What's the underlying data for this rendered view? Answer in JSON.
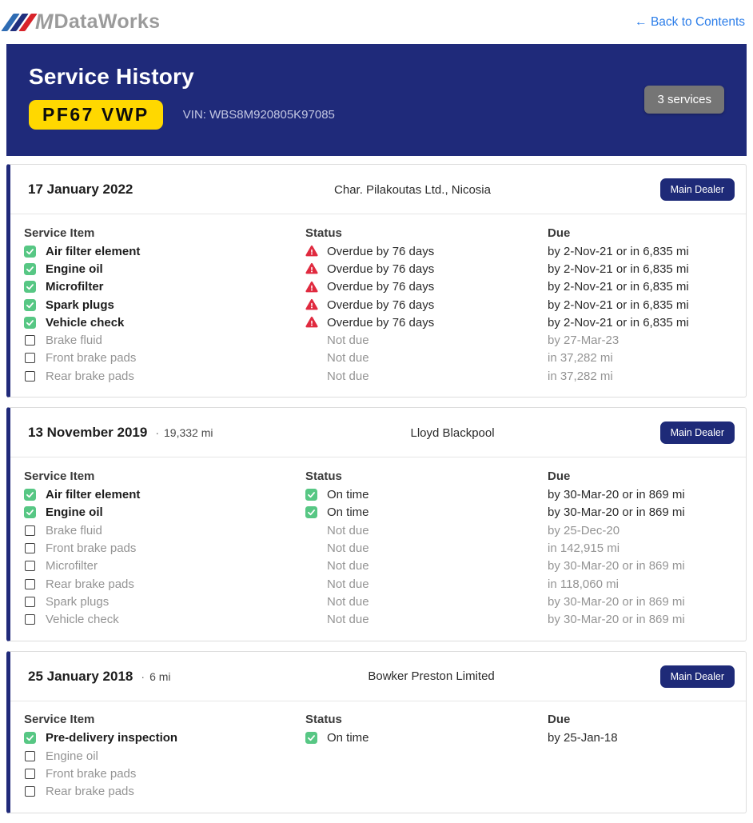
{
  "header": {
    "logo_m": "M",
    "logo_text": "DataWorks",
    "back_link": "← Back to Contents"
  },
  "banner": {
    "title": "Service History",
    "plate": "PF67 VWP",
    "vin": "VIN: WBS8M920805K97085",
    "services_badge": "3 services"
  },
  "table_headers": {
    "item": "Service Item",
    "status": "Status",
    "due": "Due"
  },
  "icons": {
    "checked": "check-icon",
    "overdue": "warning-triangle-icon",
    "ontime": "check-icon",
    "unchecked": "empty-checkbox-icon"
  },
  "colors": {
    "navy": "#1f2a7a",
    "plate_yellow": "#ffd800",
    "green": "#57c784",
    "red": "#e02a3f",
    "link_blue": "#2b7de9",
    "badge_gray": "#757575"
  },
  "services": [
    {
      "date": "17 January 2022",
      "mileage": "",
      "dealer": "Char. Pilakoutas Ltd., Nicosia",
      "badge": "Main Dealer",
      "items": [
        {
          "name": "Air filter element",
          "checked": true,
          "status_type": "overdue",
          "status": "Overdue by 76 days",
          "due": "by 2-Nov-21 or in 6,835 mi"
        },
        {
          "name": "Engine oil",
          "checked": true,
          "status_type": "overdue",
          "status": "Overdue by 76 days",
          "due": "by 2-Nov-21 or in 6,835 mi"
        },
        {
          "name": "Microfilter",
          "checked": true,
          "status_type": "overdue",
          "status": "Overdue by 76 days",
          "due": "by 2-Nov-21 or in 6,835 mi"
        },
        {
          "name": "Spark plugs",
          "checked": true,
          "status_type": "overdue",
          "status": "Overdue by 76 days",
          "due": "by 2-Nov-21 or in 6,835 mi"
        },
        {
          "name": "Vehicle check",
          "checked": true,
          "status_type": "overdue",
          "status": "Overdue by 76 days",
          "due": "by 2-Nov-21 or in 6,835 mi"
        },
        {
          "name": "Brake fluid",
          "checked": false,
          "status_type": "notdue",
          "status": "Not due",
          "due": "by 27-Mar-23"
        },
        {
          "name": "Front brake pads",
          "checked": false,
          "status_type": "notdue",
          "status": "Not due",
          "due": "in 37,282 mi"
        },
        {
          "name": "Rear brake pads",
          "checked": false,
          "status_type": "notdue",
          "status": "Not due",
          "due": "in 37,282 mi"
        }
      ]
    },
    {
      "date": "13 November 2019",
      "mileage": "19,332 mi",
      "dealer": "Lloyd Blackpool",
      "badge": "Main Dealer",
      "items": [
        {
          "name": "Air filter element",
          "checked": true,
          "status_type": "ontime",
          "status": "On time",
          "due": "by 30-Mar-20 or in 869 mi"
        },
        {
          "name": "Engine oil",
          "checked": true,
          "status_type": "ontime",
          "status": "On time",
          "due": "by 30-Mar-20 or in 869 mi"
        },
        {
          "name": "Brake fluid",
          "checked": false,
          "status_type": "notdue",
          "status": "Not due",
          "due": "by 25-Dec-20"
        },
        {
          "name": "Front brake pads",
          "checked": false,
          "status_type": "notdue",
          "status": "Not due",
          "due": "in 142,915 mi"
        },
        {
          "name": "Microfilter",
          "checked": false,
          "status_type": "notdue",
          "status": "Not due",
          "due": "by 30-Mar-20 or in 869 mi"
        },
        {
          "name": "Rear brake pads",
          "checked": false,
          "status_type": "notdue",
          "status": "Not due",
          "due": "in 118,060 mi"
        },
        {
          "name": "Spark plugs",
          "checked": false,
          "status_type": "notdue",
          "status": "Not due",
          "due": "by 30-Mar-20 or in 869 mi"
        },
        {
          "name": "Vehicle check",
          "checked": false,
          "status_type": "notdue",
          "status": "Not due",
          "due": "by 30-Mar-20 or in 869 mi"
        }
      ]
    },
    {
      "date": "25 January 2018",
      "mileage": "6 mi",
      "dealer": "Bowker Preston Limited",
      "badge": "Main Dealer",
      "items": [
        {
          "name": "Pre-delivery inspection",
          "checked": true,
          "status_type": "ontime",
          "status": "On time",
          "due": "by 25-Jan-18"
        },
        {
          "name": "Engine oil",
          "checked": false,
          "status_type": "none",
          "status": "",
          "due": ""
        },
        {
          "name": "Front brake pads",
          "checked": false,
          "status_type": "none",
          "status": "",
          "due": ""
        },
        {
          "name": "Rear brake pads",
          "checked": false,
          "status_type": "none",
          "status": "",
          "due": ""
        }
      ]
    }
  ]
}
